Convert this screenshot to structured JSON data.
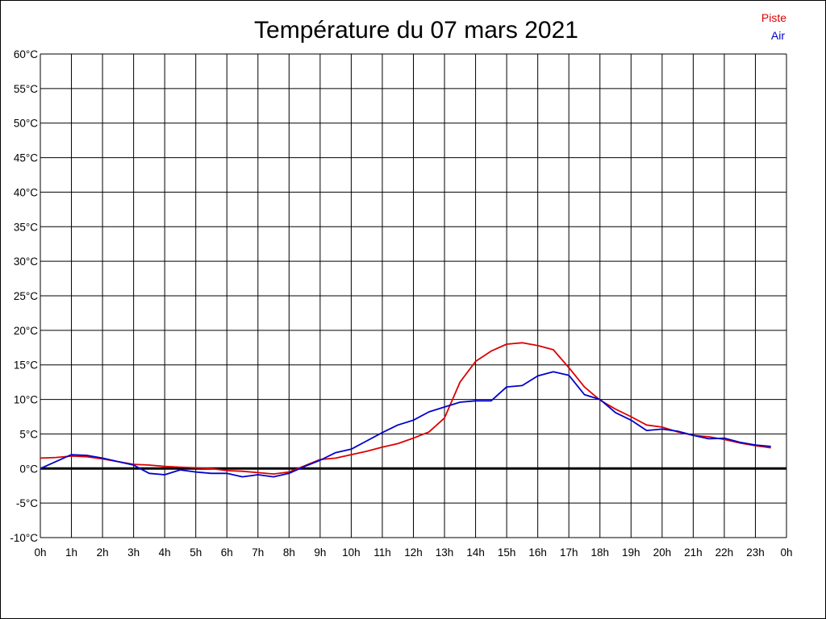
{
  "chart_data": {
    "type": "line",
    "title": "Température du 07 mars 2021",
    "ylim": [
      -10,
      60
    ],
    "xlim": [
      0,
      24
    ],
    "grid": true,
    "legend_position": "top-right",
    "y_ticks": [
      "-10°C",
      "-5°C",
      "0°C",
      "5°C",
      "10°C",
      "15°C",
      "20°C",
      "25°C",
      "30°C",
      "35°C",
      "40°C",
      "45°C",
      "50°C",
      "55°C",
      "60°C"
    ],
    "x_ticks": [
      "0h",
      "1h",
      "2h",
      "3h",
      "4h",
      "5h",
      "6h",
      "7h",
      "8h",
      "9h",
      "10h",
      "11h",
      "12h",
      "13h",
      "14h",
      "15h",
      "16h",
      "17h",
      "18h",
      "19h",
      "20h",
      "21h",
      "22h",
      "23h",
      "0h"
    ],
    "series": [
      {
        "name": "Piste",
        "color": "#dd0000",
        "x": [
          0,
          0.5,
          1,
          1.5,
          2,
          2.5,
          3,
          3.5,
          4,
          4.5,
          5,
          5.5,
          6,
          6.5,
          7,
          7.5,
          8,
          8.5,
          9,
          9.5,
          10,
          10.5,
          11,
          11.5,
          12,
          12.5,
          13,
          13.5,
          14,
          14.5,
          15,
          15.5,
          16,
          16.5,
          17,
          17.5,
          18,
          18.5,
          19,
          19.5,
          20,
          20.5,
          21,
          21.5,
          22,
          22.5,
          23,
          23.5
        ],
        "values": [
          1.5,
          1.6,
          1.8,
          1.7,
          1.4,
          1.0,
          0.6,
          0.5,
          0.3,
          0.2,
          0.1,
          0.0,
          -0.3,
          -0.4,
          -0.6,
          -0.8,
          -0.5,
          0.4,
          1.3,
          1.5,
          2.0,
          2.5,
          3.1,
          3.6,
          4.4,
          5.3,
          7.3,
          12.5,
          15.5,
          17.0,
          18.0,
          18.2,
          17.8,
          17.2,
          14.6,
          11.8,
          9.9,
          8.6,
          7.5,
          6.3,
          6.0,
          5.3,
          4.8,
          4.6,
          4.2,
          3.7,
          3.3,
          3.0
        ]
      },
      {
        "name": "Air",
        "color": "#0000cc",
        "x": [
          0,
          0.5,
          1,
          1.5,
          2,
          2.5,
          3,
          3.5,
          4,
          4.5,
          5,
          5.5,
          6,
          6.5,
          7,
          7.5,
          8,
          8.5,
          9,
          9.5,
          10,
          10.5,
          11,
          11.5,
          12,
          12.5,
          13,
          13.5,
          14,
          14.5,
          15,
          15.5,
          16,
          16.5,
          17,
          17.5,
          18,
          18.5,
          19,
          19.5,
          20,
          20.5,
          21,
          21.5,
          22,
          22.5,
          23,
          23.5
        ],
        "values": [
          0.0,
          1.0,
          2.0,
          1.9,
          1.5,
          1.0,
          0.5,
          -0.7,
          -0.9,
          -0.2,
          -0.5,
          -0.7,
          -0.7,
          -1.2,
          -0.9,
          -1.2,
          -0.7,
          0.3,
          1.2,
          2.3,
          2.8,
          4.0,
          5.2,
          6.3,
          7.0,
          8.2,
          8.9,
          9.6,
          9.8,
          9.8,
          11.8,
          12.0,
          13.4,
          14.0,
          13.5,
          10.7,
          10.0,
          8.1,
          7.0,
          5.5,
          5.7,
          5.4,
          4.8,
          4.3,
          4.4,
          3.8,
          3.4,
          3.2
        ]
      }
    ]
  }
}
